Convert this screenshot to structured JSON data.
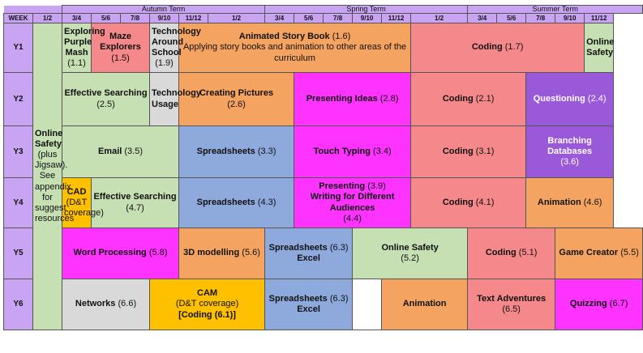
{
  "colors": {
    "header": "#c8a4f2",
    "green": "#c6e0b4",
    "pink": "#f8cbad",
    "salmon": "#f4888a",
    "grey": "#d9d9d9",
    "orange": "#f4a460",
    "magenta": "#ff33ff",
    "purple": "#9a59d8",
    "blue": "#8ea9db",
    "amber": "#ffc000",
    "white": "#ffffff"
  },
  "terms": {
    "autumn": "Autumn Term",
    "spring": "Spring Term",
    "summer": "Summer Term"
  },
  "week_label": "WEEK",
  "weeks": {
    "autumn": [
      "1/2",
      "3/4",
      "5/6",
      "7/8",
      "9/10",
      "11/12"
    ],
    "spring": [
      "1/2",
      "3/4",
      "5/6",
      "7/8",
      "9/10",
      "11/12"
    ],
    "summer": [
      "1/2",
      "3/4",
      "5/6",
      "7/8",
      "9/10",
      "11/12"
    ]
  },
  "years": [
    "Y1",
    "Y2",
    "Y3",
    "Y4",
    "Y5",
    "Y6"
  ],
  "online_safety_all": {
    "title": "Online Safety",
    "rest": "(plus Jigsaw). See appendix for suggest resources"
  },
  "y1": {
    "purple_mash": {
      "title": "Exploring Purple Mash",
      "code": "(1.1)"
    },
    "maze": {
      "title": "Maze Explorers",
      "code": "(1.5)"
    },
    "tech_school": {
      "title": "Technology Around School",
      "code": "(1.9)"
    },
    "story": {
      "title": "Animated Story Book",
      "code": "(1.6)",
      "line2": "Applying story books and animation to other areas of the curriculum"
    },
    "coding": {
      "title": "Coding",
      "code": "(1.7)"
    },
    "online_safety": {
      "title": "Online Safety"
    }
  },
  "y2": {
    "searching": {
      "title": "Effective Searching",
      "code": "(2.5)"
    },
    "tech_usage": {
      "title": "Technology Usage"
    },
    "pictures": {
      "title": "Creating Pictures",
      "code": "(2.6)"
    },
    "ideas": {
      "title": "Presenting Ideas",
      "code": "(2.8)"
    },
    "coding": {
      "title": "Coding",
      "code": "(2.1)"
    },
    "questioning": {
      "title": "Questioning",
      "code": "(2.4)"
    }
  },
  "y3": {
    "email": {
      "title": "Email",
      "code": "(3.5)"
    },
    "spreadsheets": {
      "title": "Spreadsheets",
      "code": "(3.3)"
    },
    "typing": {
      "title": "Touch Typing",
      "code": "(3.4)"
    },
    "coding": {
      "title": "Coding",
      "code": "(3.1)"
    },
    "branching": {
      "title": "Branching Databases",
      "code": "(3.6)"
    }
  },
  "y4": {
    "cad": {
      "title": "CAD",
      "rest": "(D&T coverage)"
    },
    "searching": {
      "title": "Effective Searching",
      "code": "(4.7)"
    },
    "spreadsheets": {
      "title": "Spreadsheets",
      "code": "(4.3)"
    },
    "presenting": {
      "title": "Presenting",
      "code": "(3.9)",
      "title2": "Writing for Different Audiences",
      "code2": "(4.4)"
    },
    "coding": {
      "title": "Coding",
      "code": "(4.1)"
    },
    "animation": {
      "title": "Animation",
      "code": "(4.6)"
    }
  },
  "y5": {
    "word": {
      "title": "Word Processing",
      "code": "(5.8)"
    },
    "modelling": {
      "title": "3D modelling",
      "code": "(5.6)"
    },
    "spreadsheets": {
      "title": "Spreadsheets",
      "code": "(6.3)",
      "line2": "Excel"
    },
    "online_safety": {
      "title": "Online Safety",
      "code": "(5.2)"
    },
    "coding": {
      "title": "Coding",
      "code": "(5.1)"
    },
    "game": {
      "title": "Game Creator",
      "code": "(5.5)"
    }
  },
  "y6": {
    "networks": {
      "title": "Networks",
      "code": "(6.6)"
    },
    "cam": {
      "title": "CAM",
      "rest": "(D&T coverage)",
      "coding": "[Coding (6.1)]"
    },
    "spreadsheets": {
      "title": "Spreadsheets",
      "code": "(6.3)",
      "line2": "Excel"
    },
    "animation": {
      "title": "Animation"
    },
    "adventures": {
      "title": "Text Adventures",
      "code": "(6.5)"
    },
    "quizzing": {
      "title": "Quizzing",
      "code": "(6.7)"
    }
  }
}
